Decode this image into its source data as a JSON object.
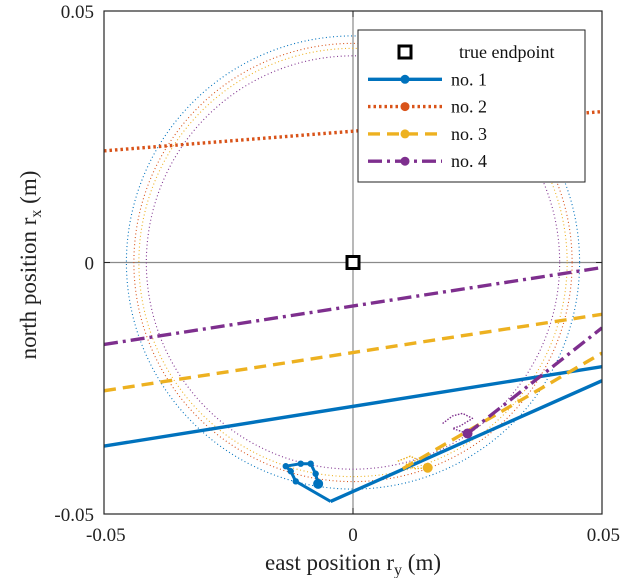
{
  "chart_data": {
    "type": "line",
    "xlabel": "east position r",
    "xlabel_sub": "y",
    "xlabel_unit": " (m)",
    "ylabel": "north position r",
    "ylabel_sub": "x",
    "ylabel_unit": " (m)",
    "xlim": [
      -0.05,
      0.05
    ],
    "ylim": [
      -0.05,
      0.05
    ],
    "x_ticks": [
      -0.05,
      0,
      0.05
    ],
    "y_ticks": [
      -0.05,
      0,
      0.05
    ],
    "x_tick_labels": [
      "-0.05",
      "0",
      "0.05"
    ],
    "y_tick_labels": [
      "-0.05",
      "0",
      "0.05"
    ],
    "grid": true,
    "zero_lines": true,
    "legend": {
      "placement": "top-right",
      "entries": [
        "true endpoint",
        "no. 1",
        "no. 2",
        "no. 3",
        "no. 4"
      ]
    },
    "true_endpoint": {
      "name": "true endpoint",
      "x": 0,
      "y": 0,
      "marker": "square",
      "color": "#000000"
    },
    "series": [
      {
        "name": "no. 1",
        "color": "#0072BD",
        "style": "solid",
        "marker": "circle",
        "lines": [
          [
            [
              -0.05,
              -0.0365
            ],
            [
              0.05,
              -0.0207
            ]
          ],
          [
            [
              -0.0045,
              -0.0475
            ],
            [
              0.05,
              -0.0235
            ]
          ]
        ],
        "track": [
          [
            -0.0045,
            -0.0475
          ],
          [
            -0.0115,
            -0.0435
          ],
          [
            -0.0125,
            -0.0415
          ],
          [
            -0.0135,
            -0.0405
          ],
          [
            -0.0105,
            -0.04
          ],
          [
            -0.0085,
            -0.04
          ],
          [
            -0.0075,
            -0.042
          ],
          [
            -0.007,
            -0.044
          ]
        ],
        "endpoint": [
          -0.007,
          -0.044
        ],
        "circle_radius": 0.0455
      },
      {
        "name": "no. 2",
        "color": "#D95319",
        "style": "dotted",
        "marker": "circle",
        "lines": [
          [
            [
              -0.05,
              0.0222
            ],
            [
              0.05,
              0.03
            ]
          ]
        ],
        "track": [],
        "endpoint": null,
        "circle_radius": 0.044
      },
      {
        "name": "no. 3",
        "color": "#EDB120",
        "style": "dashed",
        "marker": "circle",
        "lines": [
          [
            [
              -0.05,
              -0.0255
            ],
            [
              0.05,
              -0.0103
            ]
          ],
          [
            [
              0.01,
              -0.041
            ],
            [
              0.05,
              -0.018
            ]
          ]
        ],
        "track": [
          [
            0.009,
            -0.0395
          ],
          [
            0.0115,
            -0.0385
          ],
          [
            0.013,
            -0.0392
          ],
          [
            0.0105,
            -0.0402
          ],
          [
            0.0125,
            -0.041
          ],
          [
            0.015,
            -0.0408
          ]
        ],
        "endpoint": [
          0.015,
          -0.0408
        ],
        "circle_radius": 0.043
      },
      {
        "name": "no. 4",
        "color": "#7E2F8E",
        "style": "dashdot",
        "marker": "circle",
        "lines": [
          [
            [
              -0.05,
              -0.0163
            ],
            [
              0.05,
              -0.001
            ]
          ],
          [
            [
              0.023,
              -0.034
            ],
            [
              0.05,
              -0.013
            ]
          ]
        ],
        "track": [
          [
            0.018,
            -0.032
          ],
          [
            0.02,
            -0.0305
          ],
          [
            0.022,
            -0.03
          ],
          [
            0.024,
            -0.031
          ],
          [
            0.0215,
            -0.0325
          ],
          [
            0.02,
            -0.033
          ],
          [
            0.023,
            -0.034
          ]
        ],
        "endpoint": [
          0.023,
          -0.034
        ],
        "circle_radius": 0.0415
      }
    ]
  }
}
